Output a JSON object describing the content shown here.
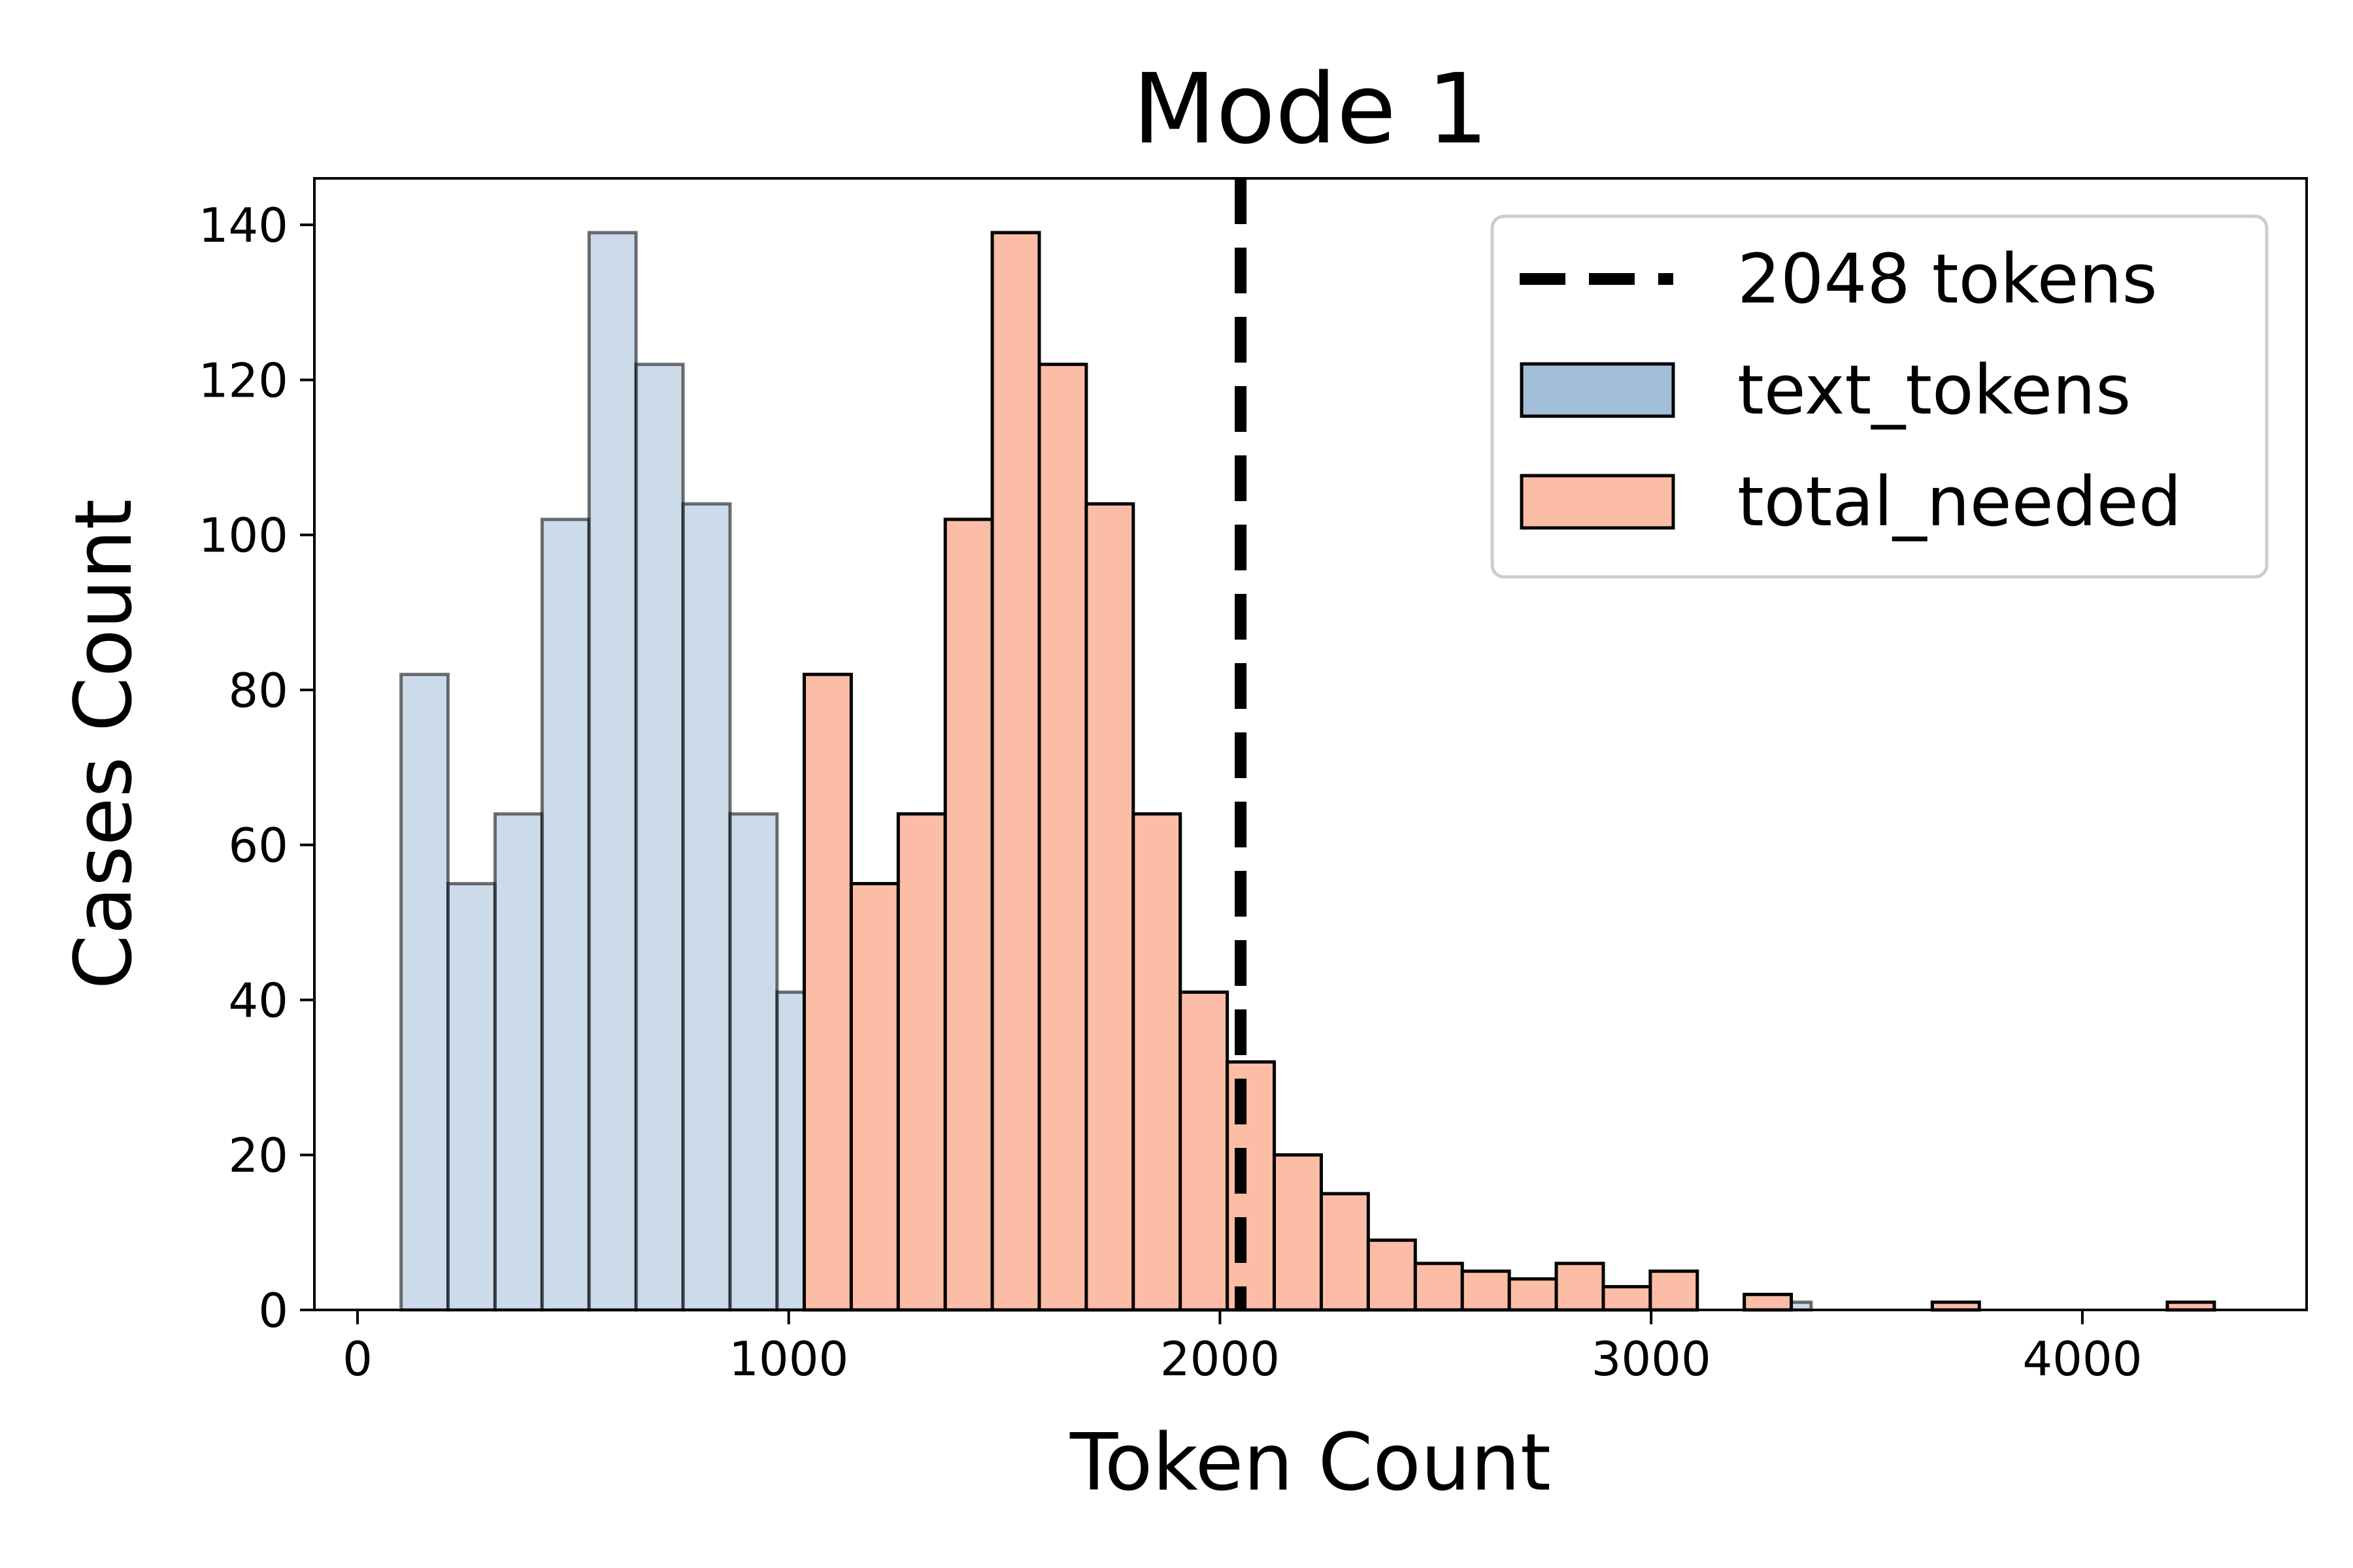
{
  "chart_data": {
    "type": "bar",
    "title": "Mode 1",
    "xlabel": "Token Count",
    "ylabel": "Cases Count",
    "xlim": [
      -100,
      4520
    ],
    "ylim": [
      0,
      146
    ],
    "xticks": [
      0,
      1000,
      2000,
      3000,
      4000
    ],
    "xtick_labels": [
      "0",
      "1000",
      "2000",
      "3000",
      "4000"
    ],
    "yticks": [
      0,
      20,
      40,
      60,
      80,
      100,
      120,
      140
    ],
    "ytick_labels": [
      "0",
      "20",
      "40",
      "60",
      "80",
      "100",
      "120",
      "140"
    ],
    "grid": false,
    "legend_position": "top-right",
    "reference_line": {
      "x": 2048,
      "label": "2048 tokens",
      "style": "dashed",
      "color": "#000000"
    },
    "series": [
      {
        "name": "text_tokens",
        "color": "#a1bdd7",
        "bin_edges": [
          101,
          210,
          319,
          428,
          537,
          646,
          755,
          864,
          973,
          1082,
          1191,
          1300,
          1409,
          1518,
          1627,
          1736,
          1845,
          1954,
          2063,
          2172,
          2281,
          2390,
          2499,
          2608,
          2717,
          2826,
          2935,
          3044,
          3153,
          3262,
          3371
        ],
        "values": [
          82,
          55,
          64,
          102,
          139,
          122,
          104,
          64,
          41,
          32,
          20,
          15,
          9,
          6,
          5,
          4,
          6,
          3,
          5,
          0,
          2,
          0,
          0,
          0,
          1,
          0,
          0,
          0,
          0,
          1
        ]
      },
      {
        "name": "total_needed",
        "color": "#fcbda6",
        "bin_edges": [
          1036,
          1145,
          1254,
          1363,
          1472,
          1581,
          1690,
          1799,
          1908,
          2017,
          2126,
          2235,
          2344,
          2453,
          2562,
          2671,
          2780,
          2889,
          2998,
          3107,
          3216,
          3325,
          3434,
          3543,
          3652,
          3761,
          3870,
          3979,
          4088,
          4197,
          4306
        ],
        "values": [
          82,
          55,
          64,
          102,
          139,
          122,
          104,
          64,
          41,
          32,
          20,
          15,
          9,
          6,
          5,
          4,
          6,
          3,
          5,
          0,
          2,
          0,
          0,
          0,
          1,
          0,
          0,
          0,
          0,
          1
        ]
      }
    ]
  }
}
